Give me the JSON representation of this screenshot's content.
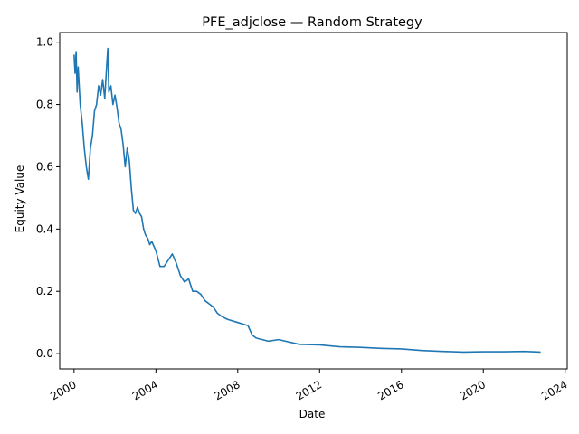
{
  "chart_data": {
    "type": "line",
    "title": "PFE_adjclose — Random Strategy",
    "xlabel": "Date",
    "ylabel": "Equity Value",
    "xlim": [
      1999.3,
      2024.1
    ],
    "ylim": [
      -0.049,
      1.031
    ],
    "x_ticks": [
      {
        "value": 2000,
        "label": "2000"
      },
      {
        "value": 2004,
        "label": "2004"
      },
      {
        "value": 2008,
        "label": "2008"
      },
      {
        "value": 2012,
        "label": "2012"
      },
      {
        "value": 2016,
        "label": "2016"
      },
      {
        "value": 2020,
        "label": "2020"
      },
      {
        "value": 2024,
        "label": "2024"
      }
    ],
    "y_ticks": [
      {
        "value": 0.0,
        "label": "0.0"
      },
      {
        "value": 0.2,
        "label": "0.2"
      },
      {
        "value": 0.4,
        "label": "0.4"
      },
      {
        "value": 0.6,
        "label": "0.6"
      },
      {
        "value": 0.8,
        "label": "0.8"
      },
      {
        "value": 1.0,
        "label": "1.0"
      }
    ],
    "grid": false,
    "legend": "none",
    "series": [
      {
        "color": "#1f77b4",
        "x": [
          2000.0,
          2000.05,
          2000.1,
          2000.15,
          2000.2,
          2000.3,
          2000.4,
          2000.5,
          2000.6,
          2000.7,
          2000.8,
          2000.9,
          2001.0,
          2001.1,
          2001.2,
          2001.3,
          2001.4,
          2001.5,
          2001.6,
          2001.65,
          2001.7,
          2001.8,
          2001.9,
          2002.0,
          2002.1,
          2002.2,
          2002.3,
          2002.4,
          2002.5,
          2002.6,
          2002.7,
          2002.8,
          2002.9,
          2003.0,
          2003.1,
          2003.2,
          2003.3,
          2003.4,
          2003.5,
          2003.6,
          2003.7,
          2003.8,
          2004.0,
          2004.2,
          2004.4,
          2004.6,
          2004.8,
          2005.0,
          2005.2,
          2005.4,
          2005.6,
          2005.8,
          2006.0,
          2006.2,
          2006.4,
          2006.6,
          2006.8,
          2007.0,
          2007.2,
          2007.5,
          2008.0,
          2008.5,
          2008.7,
          2008.9,
          2009.2,
          2009.5,
          2010.0,
          2011.0,
          2012.0,
          2013.0,
          2014.0,
          2015.0,
          2016.0,
          2017.0,
          2018.0,
          2019.0,
          2020.0,
          2021.0,
          2022.0,
          2022.8
        ],
        "y": [
          0.96,
          0.9,
          0.97,
          0.84,
          0.92,
          0.8,
          0.74,
          0.66,
          0.6,
          0.56,
          0.66,
          0.7,
          0.78,
          0.8,
          0.86,
          0.83,
          0.88,
          0.82,
          0.93,
          0.98,
          0.84,
          0.86,
          0.8,
          0.83,
          0.79,
          0.74,
          0.72,
          0.67,
          0.6,
          0.66,
          0.62,
          0.53,
          0.46,
          0.45,
          0.47,
          0.45,
          0.44,
          0.4,
          0.38,
          0.37,
          0.35,
          0.36,
          0.33,
          0.28,
          0.28,
          0.3,
          0.32,
          0.29,
          0.25,
          0.23,
          0.24,
          0.2,
          0.2,
          0.19,
          0.17,
          0.16,
          0.15,
          0.13,
          0.12,
          0.11,
          0.1,
          0.09,
          0.06,
          0.05,
          0.045,
          0.04,
          0.045,
          0.03,
          0.028,
          0.022,
          0.02,
          0.017,
          0.015,
          0.01,
          0.007,
          0.005,
          0.006,
          0.006,
          0.007,
          0.005
        ]
      }
    ]
  }
}
